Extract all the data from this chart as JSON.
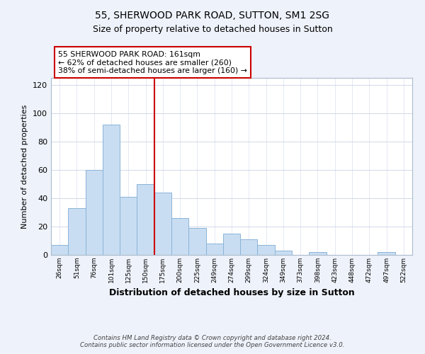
{
  "title": "55, SHERWOOD PARK ROAD, SUTTON, SM1 2SG",
  "subtitle": "Size of property relative to detached houses in Sutton",
  "xlabel": "Distribution of detached houses by size in Sutton",
  "ylabel": "Number of detached properties",
  "categories": [
    "26sqm",
    "51sqm",
    "76sqm",
    "101sqm",
    "125sqm",
    "150sqm",
    "175sqm",
    "200sqm",
    "225sqm",
    "249sqm",
    "274sqm",
    "299sqm",
    "324sqm",
    "349sqm",
    "373sqm",
    "398sqm",
    "423sqm",
    "448sqm",
    "472sqm",
    "497sqm",
    "522sqm"
  ],
  "values": [
    7,
    33,
    60,
    92,
    41,
    50,
    44,
    26,
    19,
    8,
    15,
    11,
    7,
    3,
    0,
    2,
    0,
    0,
    0,
    2,
    0
  ],
  "bar_color": "#c9ddf2",
  "bar_edge_color": "#8ab4d8",
  "vline_x_index": 5,
  "vline_color": "#cc0000",
  "annotation_line1": "55 SHERWOOD PARK ROAD: 161sqm",
  "annotation_line2": "← 62% of detached houses are smaller (260)",
  "annotation_line3": "38% of semi-detached houses are larger (160) →",
  "annotation_box_color": "#cc0000",
  "ylim": [
    0,
    125
  ],
  "yticks": [
    0,
    20,
    40,
    60,
    80,
    100,
    120
  ],
  "footer_line1": "Contains HM Land Registry data © Crown copyright and database right 2024.",
  "footer_line2": "Contains public sector information licensed under the Open Government Licence v3.0.",
  "bg_color": "#eef2fa",
  "plot_bg_color": "#ffffff",
  "grid_color": "#d0d8e8"
}
